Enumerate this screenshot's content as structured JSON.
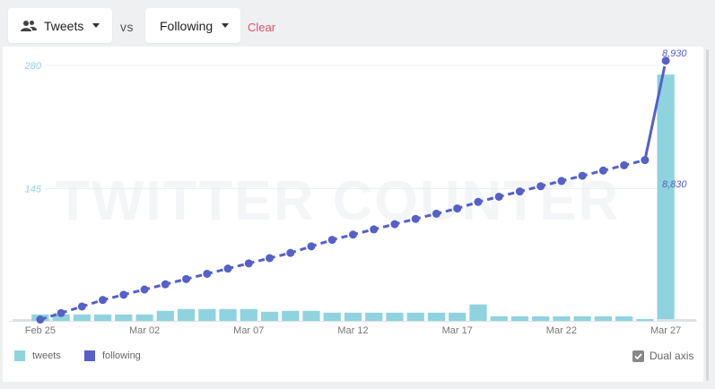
{
  "controls": {
    "primary_metric": "Tweets",
    "vs_label": "vs",
    "secondary_metric": "Following",
    "clear_label": "Clear"
  },
  "watermark": "TWITTER COUNTER",
  "legend": {
    "tweets_label": "tweets",
    "following_label": "following",
    "dual_axis_label": "Dual axis",
    "dual_axis_checked": true
  },
  "colors": {
    "tweets": "#8fd3de",
    "following": "#5560c8",
    "left_axis": "#8fd3de",
    "right_axis": "#5560c8",
    "clear": "#e0536b"
  },
  "chart_data": {
    "type": "bar+line",
    "x_ticks": [
      "Feb 25",
      "Mar 02",
      "Mar 07",
      "Mar 12",
      "Mar 17",
      "Mar 22",
      "Mar 27"
    ],
    "left_axis": {
      "ticks": [
        "280",
        "145"
      ],
      "range": [
        0,
        280
      ]
    },
    "right_axis": {
      "ticks": [
        "8,930",
        "8,830"
      ],
      "range": [
        8725,
        8930
      ]
    },
    "dates": [
      "Feb 24",
      "Feb 25",
      "Feb 26",
      "Feb 27",
      "Feb 28",
      "Mar 01",
      "Mar 02",
      "Mar 03",
      "Mar 04",
      "Mar 05",
      "Mar 06",
      "Mar 07",
      "Mar 08",
      "Mar 09",
      "Mar 10",
      "Mar 11",
      "Mar 12",
      "Mar 13",
      "Mar 14",
      "Mar 15",
      "Mar 16",
      "Mar 17",
      "Mar 18",
      "Mar 19",
      "Mar 20",
      "Mar 21",
      "Mar 22",
      "Mar 23",
      "Mar 24",
      "Mar 25",
      "Mar 26",
      "Mar 27",
      "Mar 28"
    ],
    "series": [
      {
        "name": "tweets",
        "type": "bar",
        "values": [
          1,
          7,
          7,
          7,
          7,
          7,
          7,
          11,
          13,
          13,
          13,
          13,
          10,
          11,
          11,
          9,
          9,
          9,
          9,
          9,
          9,
          9,
          18,
          5,
          5,
          5,
          5,
          5,
          5,
          5,
          2,
          270,
          1
        ]
      },
      {
        "name": "following",
        "type": "line",
        "values": [
          null,
          8726,
          8731,
          8736,
          8741,
          8745,
          8749,
          8753,
          8757,
          8761,
          8765,
          8769,
          8773,
          8777,
          8782,
          8787,
          8791,
          8795,
          8799,
          8803,
          8807,
          8811,
          8816,
          8820,
          8824,
          8828,
          8832,
          8836,
          8840,
          8844,
          8848,
          8924,
          null
        ]
      }
    ]
  }
}
